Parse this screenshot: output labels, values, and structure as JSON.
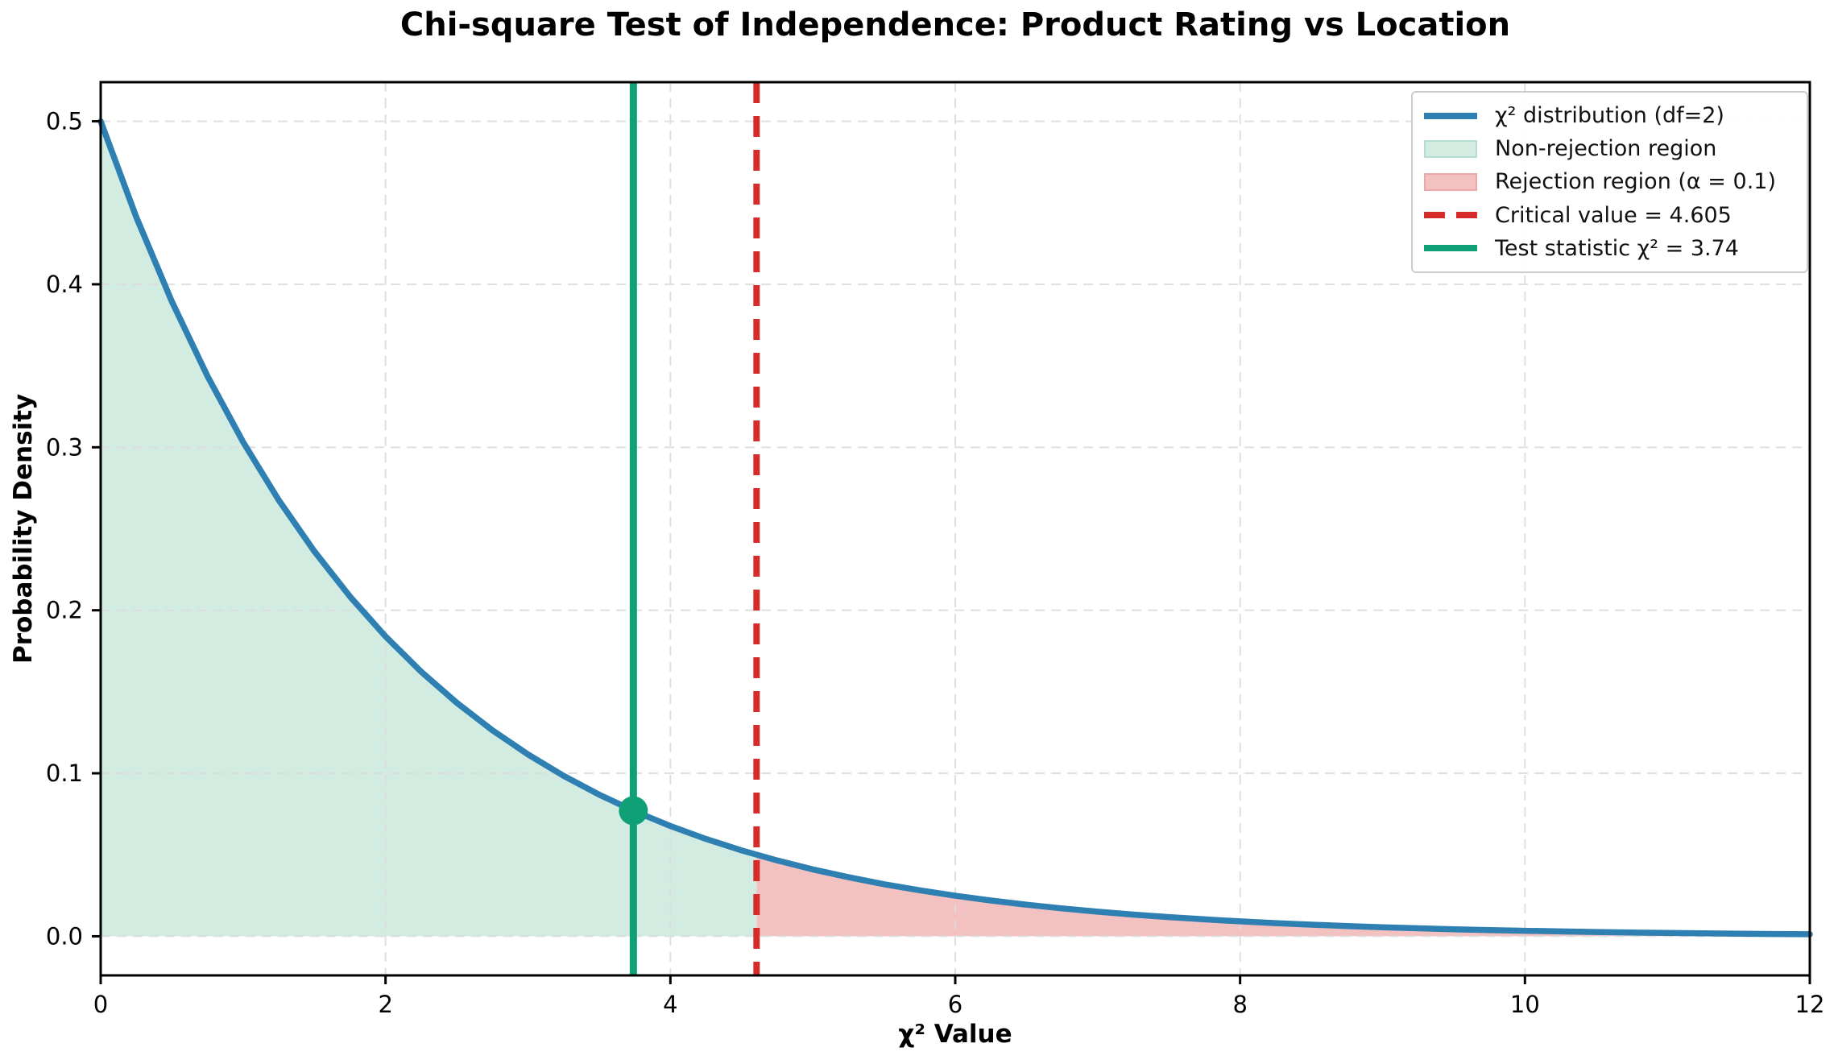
{
  "chart_data": {
    "type": "line",
    "title": "Chi-square Test of Independence: Product Rating vs Location",
    "xlabel": "χ² Value",
    "ylabel": "Probability Density",
    "xlim": [
      0,
      12
    ],
    "ylim": [
      -0.024,
      0.524
    ],
    "xticks": [
      0,
      2,
      4,
      6,
      8,
      10,
      12
    ],
    "yticks": [
      0.0,
      0.1,
      0.2,
      0.3,
      0.4,
      0.5
    ],
    "grid": true,
    "legend_position": "upper right",
    "df": 2,
    "alpha": 0.1,
    "critical_value": 4.605,
    "test_statistic": 3.74,
    "test_statistic_density": 0.07706,
    "series": [
      {
        "name": "χ² distribution (df=2)",
        "x": [
          0,
          0.25,
          0.5,
          0.75,
          1,
          1.25,
          1.5,
          1.75,
          2,
          2.25,
          2.5,
          2.75,
          3,
          3.25,
          3.5,
          3.75,
          4,
          4.25,
          4.5,
          4.75,
          5,
          5.25,
          5.5,
          5.75,
          6,
          6.25,
          6.5,
          6.75,
          7,
          7.25,
          7.5,
          7.75,
          8,
          8.25,
          8.5,
          8.75,
          9,
          9.25,
          9.5,
          9.75,
          10,
          10.25,
          10.5,
          10.75,
          11,
          11.25,
          11.5,
          11.75,
          12
        ],
        "y": [
          0.5,
          0.44125,
          0.3894,
          0.34365,
          0.30327,
          0.26763,
          0.23618,
          0.20843,
          0.18394,
          0.16233,
          0.14325,
          0.12642,
          0.11157,
          0.09846,
          0.08689,
          0.07668,
          0.06767,
          0.05972,
          0.0527,
          0.04651,
          0.04104,
          0.03622,
          0.03196,
          0.02821,
          0.02489,
          0.02197,
          0.01939,
          0.01711,
          0.0151,
          0.01332,
          0.01176,
          0.01038,
          0.00916,
          0.00808,
          0.00713,
          0.00629,
          0.00555,
          0.0049,
          0.00433,
          0.00382,
          0.00337,
          0.00297,
          0.00262,
          0.00231,
          0.00204,
          0.0018,
          0.00159,
          0.0014,
          0.00124
        ]
      }
    ],
    "regions": [
      {
        "label": "Non-rejection region",
        "x_from": 0,
        "x_to": 4.605,
        "fill": "#d2ece2"
      },
      {
        "label": "Rejection region (α = 0.1)",
        "x_from": 4.605,
        "x_to": 12,
        "fill": "#f3c1c0"
      }
    ],
    "colors": {
      "curve": "#2e7fb2",
      "non_rejection_fill": "#d2ece2",
      "non_rejection_edge": "#b4ddcd",
      "rejection_fill": "#f3c1c0",
      "rejection_edge": "#eba8a6",
      "critical_line": "#d62b2b",
      "test_line": "#0fa077",
      "grid": "#dcdcdc",
      "axis": "#000000",
      "legend_border": "#cccccc"
    },
    "legend": [
      {
        "label": "χ² distribution (df=2)",
        "marker": "line",
        "color": "#2e7fb2"
      },
      {
        "label": "Non-rejection region",
        "marker": "patch",
        "color": "#d2ece2",
        "edge": "#b4ddcd"
      },
      {
        "label": "Rejection region (α = 0.1)",
        "marker": "patch",
        "color": "#f3c1c0",
        "edge": "#eba8a6"
      },
      {
        "label": "Critical value = 4.605",
        "marker": "dashed-line",
        "color": "#d62b2b"
      },
      {
        "label": "Test statistic χ² = 3.74",
        "marker": "line",
        "color": "#0fa077"
      }
    ]
  }
}
